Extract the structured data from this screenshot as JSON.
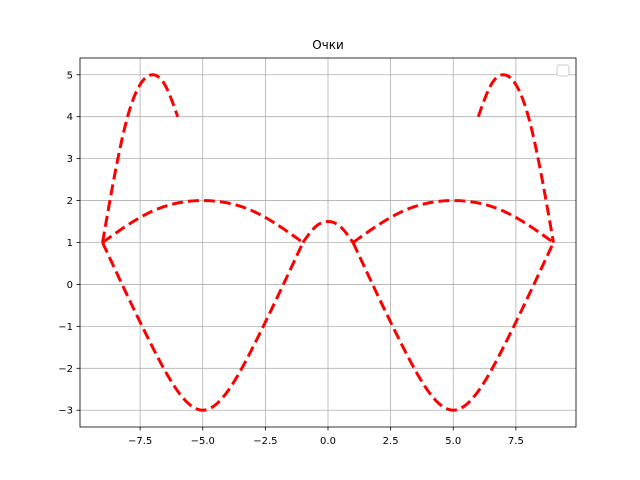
{
  "chart_data": {
    "type": "line",
    "title": "Очки",
    "xlabel": "",
    "ylabel": "",
    "xlim": [
      -9.9,
      9.9
    ],
    "ylim": [
      -3.4,
      5.4
    ],
    "xticks": [
      -7.5,
      -5.0,
      -2.5,
      0.0,
      2.5,
      5.0,
      7.5
    ],
    "xtick_labels": [
      "−7.5",
      "−5.0",
      "−2.5",
      "0.0",
      "2.5",
      "5.0",
      "7.5"
    ],
    "yticks": [
      -3,
      -2,
      -1,
      0,
      1,
      2,
      3,
      4,
      5
    ],
    "ytick_labels": [
      "−3",
      "−2",
      "−1",
      "0",
      "1",
      "2",
      "3",
      "4",
      "5"
    ],
    "grid": true,
    "legend": "upper-right",
    "line_color": "#ff0000",
    "line_style": "dashed",
    "series": [
      {
        "x": [
          -9,
          -8,
          -7,
          -6.5,
          -6
        ],
        "y": [
          1,
          4,
          5,
          4.75,
          4
        ]
      },
      {
        "x": [
          -9,
          -7,
          -5,
          -3,
          -1
        ],
        "y": [
          1,
          1.75,
          2,
          1.75,
          1
        ]
      },
      {
        "x": [
          -9,
          -7,
          -5,
          -3,
          -1
        ],
        "y": [
          1,
          -1.5,
          -3,
          -1.5,
          1
        ]
      },
      {
        "x": [
          -1,
          -0.5,
          0,
          0.5,
          1
        ],
        "y": [
          1,
          1.375,
          1.5,
          1.375,
          1
        ]
      },
      {
        "x": [
          1,
          3,
          5,
          7,
          9
        ],
        "y": [
          1,
          1.75,
          2,
          1.75,
          1
        ]
      },
      {
        "x": [
          1,
          3,
          5,
          7,
          9
        ],
        "y": [
          1,
          -1.5,
          -3,
          -1.5,
          1
        ]
      },
      {
        "x": [
          6,
          6.5,
          7,
          8,
          9
        ],
        "y": [
          4,
          4.75,
          5,
          4,
          1
        ]
      }
    ]
  }
}
